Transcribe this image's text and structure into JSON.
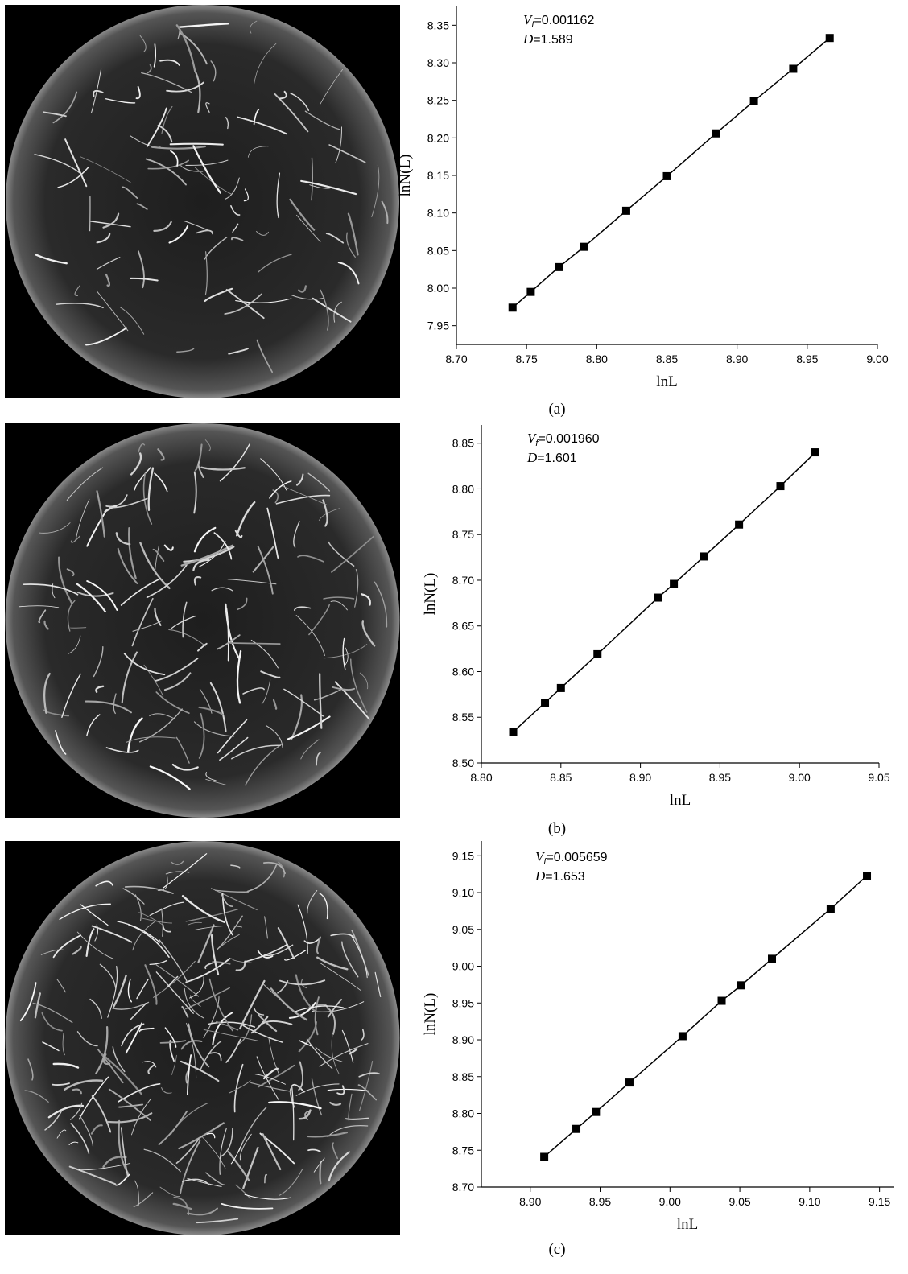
{
  "chart_data": [
    {
      "type": "line",
      "marker": "square",
      "color": "#000000",
      "x": [
        8.74,
        8.753,
        8.773,
        8.791,
        8.821,
        8.85,
        8.885,
        8.912,
        8.94,
        8.966
      ],
      "values": [
        7.974,
        7.995,
        8.028,
        8.055,
        8.103,
        8.149,
        8.206,
        8.249,
        8.292,
        8.333
      ],
      "xlim": [
        8.7,
        9.0
      ],
      "ylim": [
        7.925,
        8.375
      ],
      "xticks": [
        {
          "value": 8.7,
          "label": "8.70"
        },
        8.75,
        {
          "value": 8.8,
          "label": "8.80"
        },
        8.85,
        {
          "value": 8.9,
          "label": "8.90"
        },
        8.95,
        {
          "value": 9.0,
          "label": "9.00"
        }
      ],
      "yticks": [
        7.95,
        {
          "value": 8.0,
          "label": "8.00"
        },
        8.05,
        {
          "value": 8.1,
          "label": "8.10"
        },
        8.15,
        {
          "value": 8.2,
          "label": "8.20"
        },
        8.25,
        {
          "value": 8.3,
          "label": "8.30"
        },
        8.35
      ],
      "xlabel": "lnL",
      "ylabel": "lnN(L)",
      "annotations": [
        {
          "symbol": "V",
          "subscript": "f",
          "text": "=0.001162"
        },
        {
          "symbol": "D",
          "text": "=1.589"
        }
      ],
      "caption": "(a)"
    },
    {
      "type": "line",
      "marker": "square",
      "color": "#000000",
      "x": [
        8.82,
        8.84,
        8.85,
        8.873,
        8.911,
        8.921,
        8.94,
        8.962,
        8.988,
        9.01
      ],
      "values": [
        8.534,
        8.566,
        8.582,
        8.619,
        8.681,
        8.696,
        8.726,
        8.761,
        8.803,
        8.84
      ],
      "xlim": [
        8.8,
        9.05
      ],
      "ylim": [
        8.5,
        8.87
      ],
      "xticks": [
        {
          "value": 8.8,
          "label": "8.80"
        },
        8.85,
        {
          "value": 8.9,
          "label": "8.90"
        },
        8.95,
        {
          "value": 9.0,
          "label": "9.00"
        },
        9.05
      ],
      "yticks": [
        {
          "value": 8.5,
          "label": "8.50"
        },
        8.55,
        {
          "value": 8.6,
          "label": "8.60"
        },
        8.65,
        {
          "value": 8.7,
          "label": "8.70"
        },
        8.75,
        {
          "value": 8.8,
          "label": "8.80"
        },
        8.85
      ],
      "xlabel": "lnL",
      "ylabel": "lnN(L)",
      "annotations": [
        {
          "symbol": "V",
          "subscript": "f",
          "text": "=0.001960"
        },
        {
          "symbol": "D",
          "text": "=1.601"
        }
      ],
      "caption": "(b)"
    },
    {
      "type": "line",
      "marker": "square",
      "color": "#000000",
      "x": [
        8.91,
        8.933,
        8.947,
        8.971,
        9.009,
        9.037,
        9.051,
        9.073,
        9.115,
        9.141
      ],
      "values": [
        8.741,
        8.779,
        8.802,
        8.842,
        8.905,
        8.953,
        8.974,
        9.01,
        9.078,
        9.123
      ],
      "xlim": [
        8.865,
        9.16
      ],
      "ylim": [
        8.7,
        9.17
      ],
      "xticks": [
        {
          "value": 8.9,
          "label": "8.90"
        },
        8.95,
        {
          "value": 9.0,
          "label": "9.00"
        },
        9.05,
        {
          "value": 9.1,
          "label": "9.10"
        },
        9.15
      ],
      "yticks": [
        {
          "value": 8.7,
          "label": "8.70"
        },
        8.75,
        {
          "value": 8.8,
          "label": "8.80"
        },
        8.85,
        {
          "value": 8.9,
          "label": "8.90"
        },
        8.95,
        {
          "value": 9.0,
          "label": "9.00"
        },
        9.05,
        {
          "value": 9.1,
          "label": "9.10"
        },
        9.15
      ],
      "xlabel": "lnL",
      "ylabel": "lnN(L)",
      "annotations": [
        {
          "symbol": "V",
          "subscript": "f",
          "text": "=0.005659"
        },
        {
          "symbol": "D",
          "text": "=1.653"
        }
      ],
      "caption": "(c)"
    }
  ]
}
